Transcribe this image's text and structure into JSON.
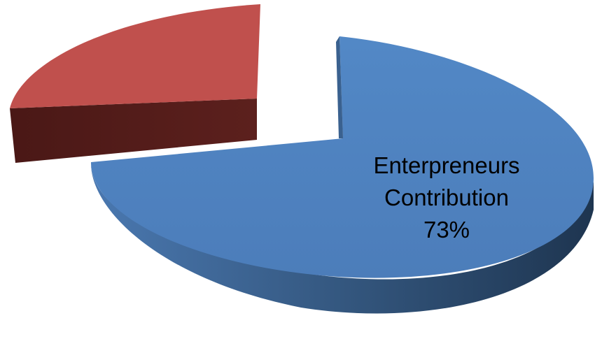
{
  "chart_data": {
    "type": "pie",
    "style": "3d-exploded",
    "title": "",
    "slices": [
      {
        "label_lines": [
          "Enterpreneurs",
          "Contribution",
          "73%"
        ],
        "value": 73,
        "color": "#4F81BD",
        "side_color": "#2E4D74"
      },
      {
        "label_lines": [],
        "value": 27,
        "color": "#C0504D",
        "side_color": "#5A1E1C"
      }
    ],
    "legend": "none",
    "data_labels": "inside"
  }
}
